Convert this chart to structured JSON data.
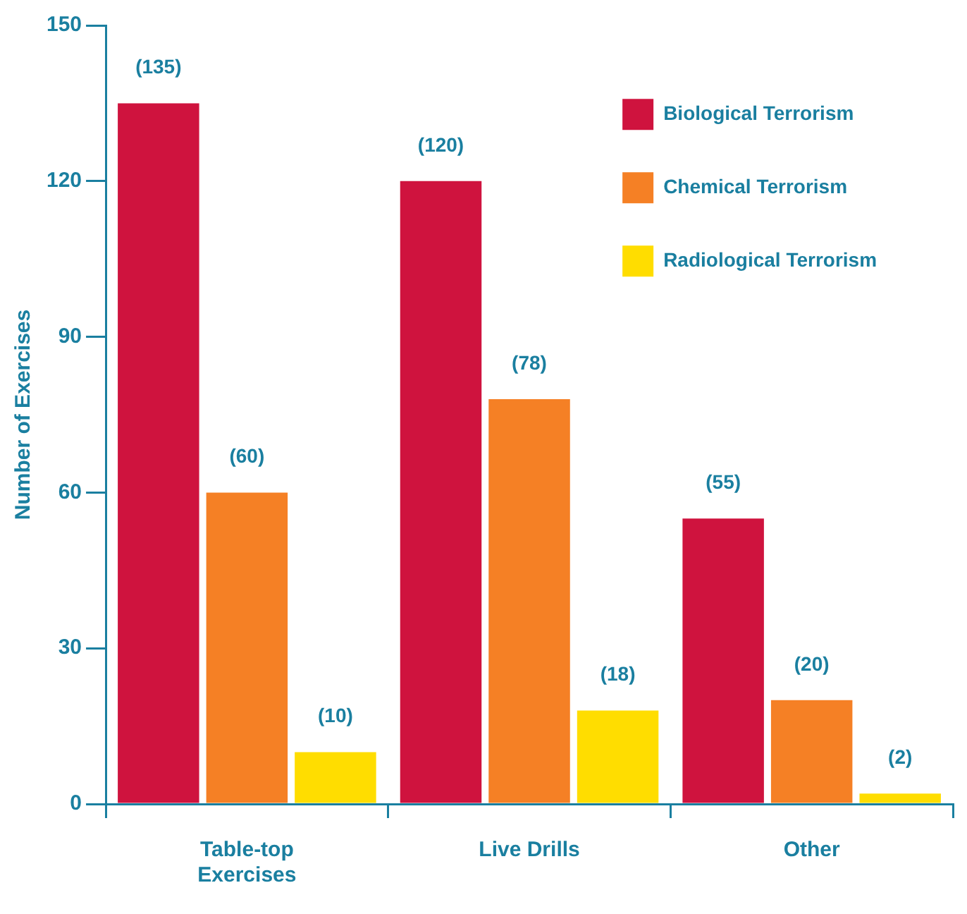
{
  "chart_data": {
    "type": "bar",
    "ylabel": "Number of Exercises",
    "categories": [
      "Table-top Exercises",
      "Live Drills",
      "Other"
    ],
    "series": [
      {
        "name": "Biological Terrorism",
        "color": "#cf133e",
        "values": [
          135,
          120,
          55
        ],
        "value_labels": [
          "(135)",
          "(120)",
          "(55)"
        ]
      },
      {
        "name": "Chemical Terrorism",
        "color": "#f58025",
        "values": [
          60,
          78,
          20
        ],
        "value_labels": [
          "(60)",
          "(78)",
          "(20)"
        ]
      },
      {
        "name": "Radiological Terrorism",
        "color": "#ffdd00",
        "values": [
          10,
          18,
          2
        ],
        "value_labels": [
          "(10)",
          "(18)",
          "(2)"
        ]
      }
    ],
    "ylim": [
      0,
      150
    ],
    "yticks": [
      0,
      30,
      60,
      90,
      120,
      150
    ],
    "grid": false,
    "legend": "top right"
  }
}
